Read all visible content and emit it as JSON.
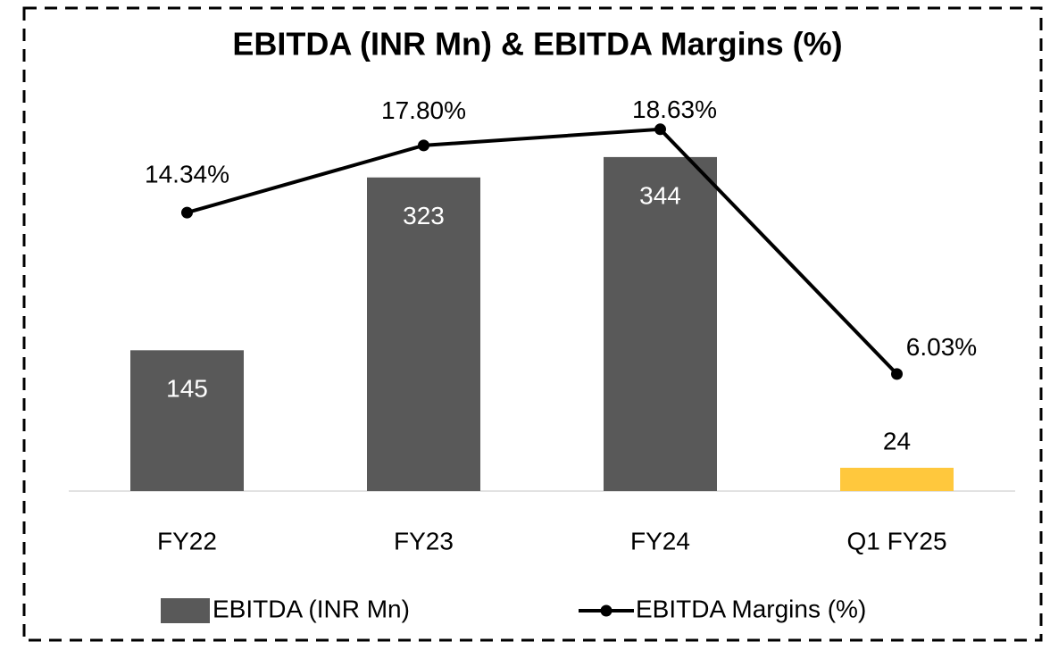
{
  "chart_data": {
    "type": "bar-line",
    "title": "EBITDA (INR Mn) & EBITDA Margins (%)",
    "categories": [
      "FY22",
      "FY23",
      "FY24",
      "Q1 FY25"
    ],
    "series": [
      {
        "name": "EBITDA (INR Mn)",
        "type": "bar",
        "color": "#595959",
        "colors": [
          "#595959",
          "#595959",
          "#595959",
          "#ffc83d"
        ],
        "values": [
          145,
          323,
          344,
          24
        ]
      },
      {
        "name": "EBITDA Margins (%)",
        "type": "line",
        "axis": "y2",
        "color": "#000000",
        "values": [
          14.34,
          17.8,
          18.63,
          6.03
        ],
        "value_labels": [
          "14.34%",
          "17.80%",
          "18.63%",
          "6.03%"
        ]
      }
    ],
    "ylim": [
      0,
      400
    ],
    "y2lim": [
      0,
      20
    ],
    "legend": "bottom"
  }
}
